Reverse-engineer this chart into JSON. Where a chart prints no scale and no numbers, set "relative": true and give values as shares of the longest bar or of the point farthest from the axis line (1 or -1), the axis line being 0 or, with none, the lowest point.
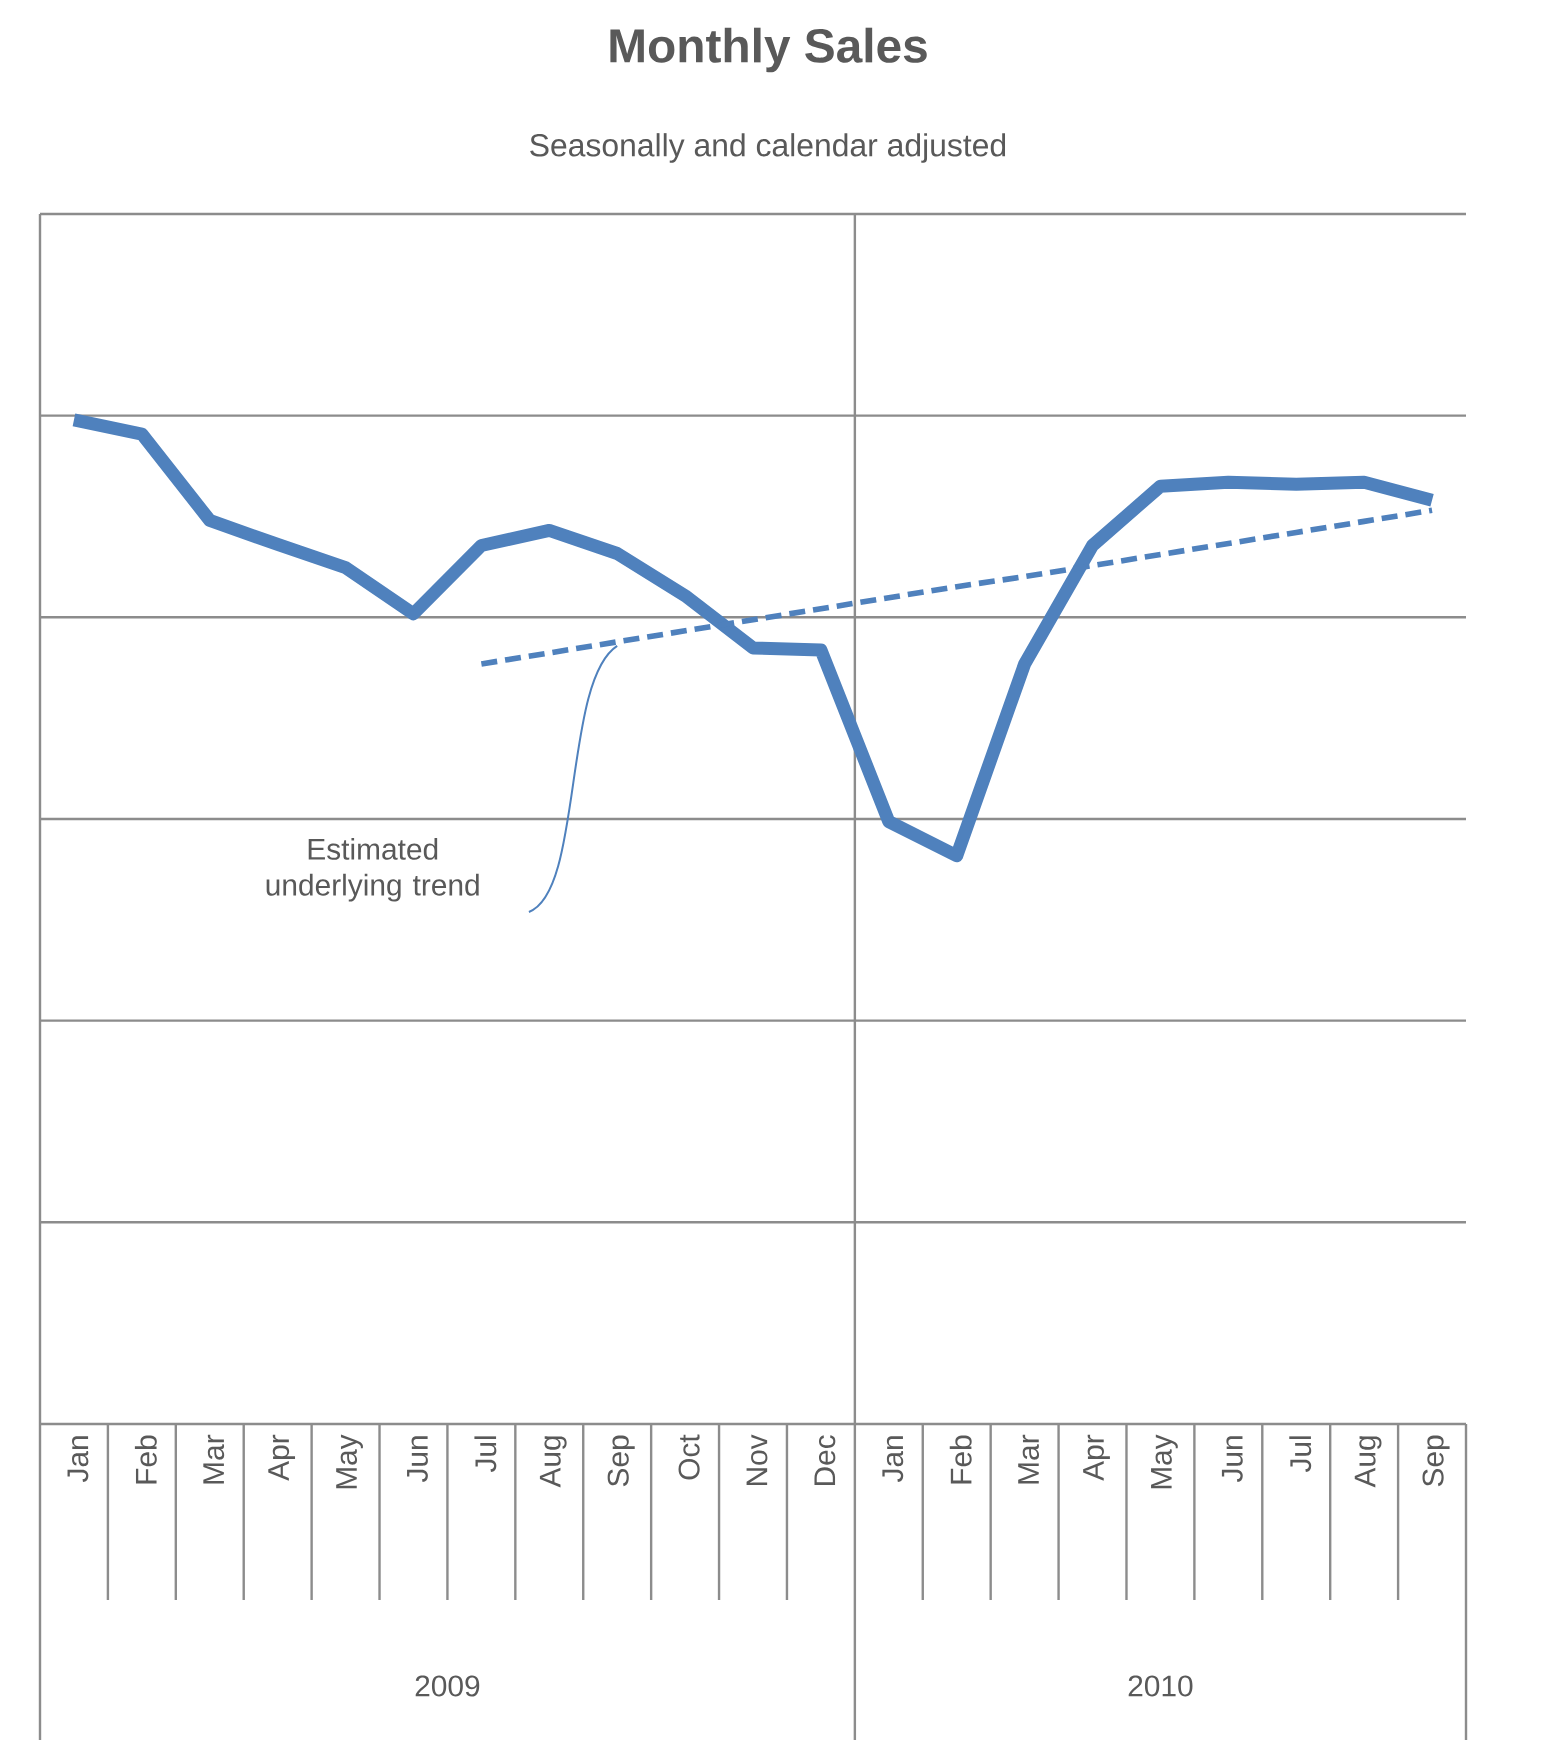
{
  "chart_data": {
    "type": "line",
    "title": "Monthly Sales",
    "subtitle": "Seasonally and calendar adjusted",
    "categories": [
      "Jan",
      "Feb",
      "Mar",
      "Apr",
      "May",
      "Jun",
      "Jul",
      "Aug",
      "Sep",
      "Oct",
      "Nov",
      "Dec",
      "Jan",
      "Feb",
      "Mar",
      "Apr",
      "May",
      "Jun",
      "Jul",
      "Aug",
      "Sep"
    ],
    "relative": true,
    "grid": "y",
    "series": [
      {
        "color": "#4f81bd",
        "line_style": "solid",
        "values": [
          1,
          0.986,
          0.9,
          0.876,
          0.853,
          0.807,
          0.875,
          0.89,
          0.867,
          0.825,
          0.773,
          0.771,
          0.6,
          0.566,
          0.757,
          0.875,
          0.934,
          0.938,
          0.936,
          0.938,
          0.92
        ]
      },
      {
        "type": "line",
        "color": "#4f81bd",
        "line_style": "dashed",
        "values": [
          null,
          null,
          null,
          null,
          null,
          null,
          0.757,
          0.768,
          0.779,
          0.79,
          0.801,
          0.812,
          0.823,
          0.834,
          0.844,
          0.855,
          0.866,
          0.877,
          0.888,
          0.899,
          0.91
        ]
      }
    ],
    "annotations": [
      "Estimated underlying trend",
      "2009",
      "2010"
    ]
  }
}
